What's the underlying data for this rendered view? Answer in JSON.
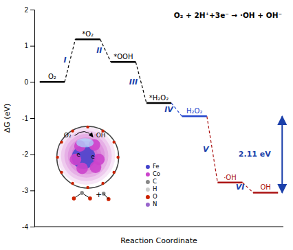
{
  "chart_data": {
    "type": "energy_levels",
    "xlabel": "Reaction Coordinate",
    "ylabel": "ΔG (eV)",
    "ylim": [
      -4,
      2
    ],
    "yticks": [
      -4,
      -3,
      -2,
      -1,
      0,
      1,
      2
    ],
    "tick_labels": "y",
    "categories": [
      "O₂",
      "*O₂",
      "*OOH",
      "*H₂O₂",
      "H₂O₂",
      "·OH",
      "OH"
    ],
    "values": [
      0.0,
      1.18,
      0.55,
      -0.58,
      -0.95,
      -2.78,
      -3.06
    ],
    "colors": [
      "#000000",
      "#000000",
      "#000000",
      "#000000",
      "#2244cc",
      "#aa1111",
      "#aa1111"
    ],
    "step_labels": [
      {
        "text": "I",
        "color": "#1a3faa"
      },
      {
        "text": "II",
        "color": "#1a3faa"
      },
      {
        "text": "III",
        "color": "#1a3faa"
      },
      {
        "text": "IV",
        "color": "#1a3faa"
      },
      {
        "text": "V",
        "color": "#1a3faa"
      },
      {
        "text": "VI",
        "color": "#1a3faa"
      }
    ],
    "annotations": [
      {
        "text": "2.11 eV",
        "y1": -0.95,
        "y2": -3.06,
        "color": "#1a3faa"
      },
      {
        "text": "O₂ + 2H⁺+3e⁻ → ·OH + OH⁻"
      }
    ],
    "inset": {
      "texts": [
        "O₂",
        "·OH",
        "e",
        "e",
        "+"
      ],
      "elements": [
        {
          "name": "Fe",
          "color": "#4444cc"
        },
        {
          "name": "Co",
          "color": "#cc44cc"
        },
        {
          "name": "C",
          "color": "#888888"
        },
        {
          "name": "H",
          "color": "#cccccc"
        },
        {
          "name": "O",
          "color": "#cc2200"
        },
        {
          "name": "N",
          "color": "#9966cc"
        }
      ]
    }
  }
}
